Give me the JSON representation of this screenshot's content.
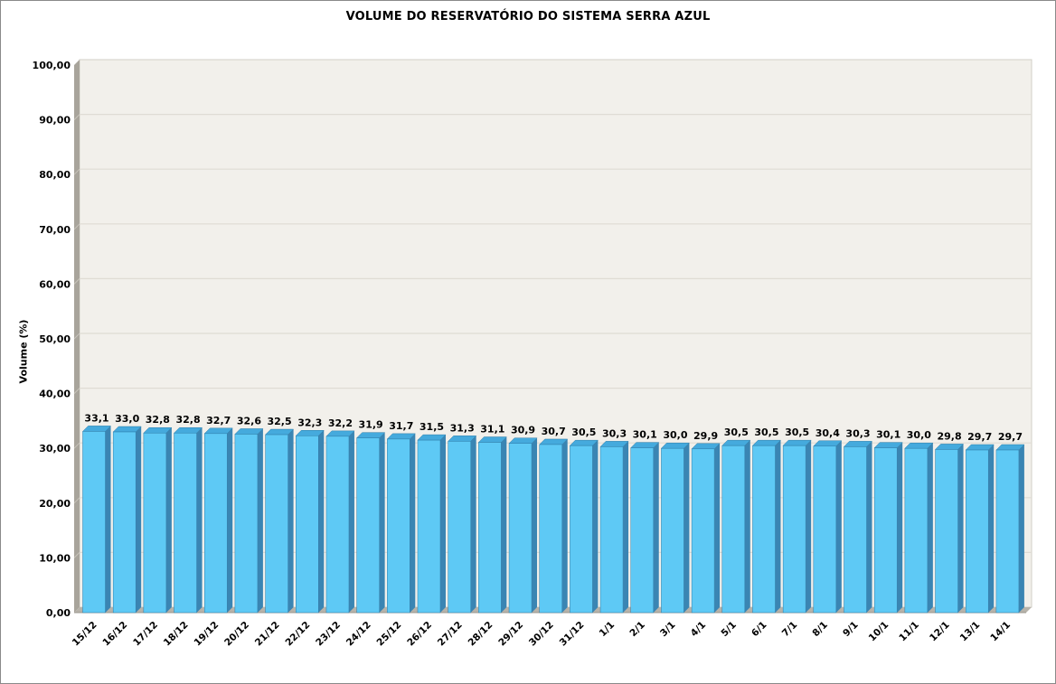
{
  "chart_data": {
    "type": "bar",
    "title": "VOLUME DO RESERVATÓRIO DO SISTEMA SERRA AZUL",
    "xlabel": "",
    "ylabel": "Volume (%)",
    "ylim": [
      0,
      100
    ],
    "y_tick_step": 10,
    "y_tick_labels": [
      "0,00",
      "10,00",
      "20,00",
      "30,00",
      "40,00",
      "50,00",
      "60,00",
      "70,00",
      "80,00",
      "90,00",
      "100,00"
    ],
    "grid": true,
    "legend": false,
    "effect_3d": true,
    "categories": [
      "15/12",
      "16/12",
      "17/12",
      "18/12",
      "19/12",
      "20/12",
      "21/12",
      "22/12",
      "23/12",
      "24/12",
      "25/12",
      "26/12",
      "27/12",
      "28/12",
      "29/12",
      "30/12",
      "31/12",
      "1/1",
      "2/1",
      "3/1",
      "4/1",
      "5/1",
      "6/1",
      "7/1",
      "8/1",
      "9/1",
      "10/1",
      "11/1",
      "12/1",
      "13/1",
      "14/1"
    ],
    "values": [
      33.1,
      33.0,
      32.8,
      32.8,
      32.7,
      32.6,
      32.5,
      32.3,
      32.2,
      31.9,
      31.7,
      31.5,
      31.3,
      31.1,
      30.9,
      30.7,
      30.5,
      30.3,
      30.1,
      30.0,
      29.9,
      30.5,
      30.5,
      30.5,
      30.4,
      30.3,
      30.1,
      30.0,
      29.8,
      29.7,
      29.7
    ],
    "value_labels": [
      "33,1",
      "33,0",
      "32,8",
      "32,8",
      "32,7",
      "32,6",
      "32,5",
      "32,3",
      "32,2",
      "31,9",
      "31,7",
      "31,5",
      "31,3",
      "31,1",
      "30,9",
      "30,7",
      "30,5",
      "30,3",
      "30,1",
      "30,0",
      "29,9",
      "30,5",
      "30,5",
      "30,5",
      "30,4",
      "30,3",
      "30,1",
      "30,0",
      "29,8",
      "29,7",
      "29,7"
    ],
    "colors": {
      "bar_front": "#5EC9F5",
      "bar_side": "#3A85B3",
      "bar_top": "#45AADD",
      "bar_edge": "#2E7CA8",
      "wall_back": "#F2F0EB",
      "wall_side": "#A8A49B",
      "wall_tick": "#C9C5BC",
      "wall_border": "#D2CFC7",
      "floor": "#B7B3AA",
      "floor_edge": "#99958C",
      "gridline": "#DFDCD4",
      "text": "#000000",
      "frame_border": "#8A8A8A"
    }
  }
}
